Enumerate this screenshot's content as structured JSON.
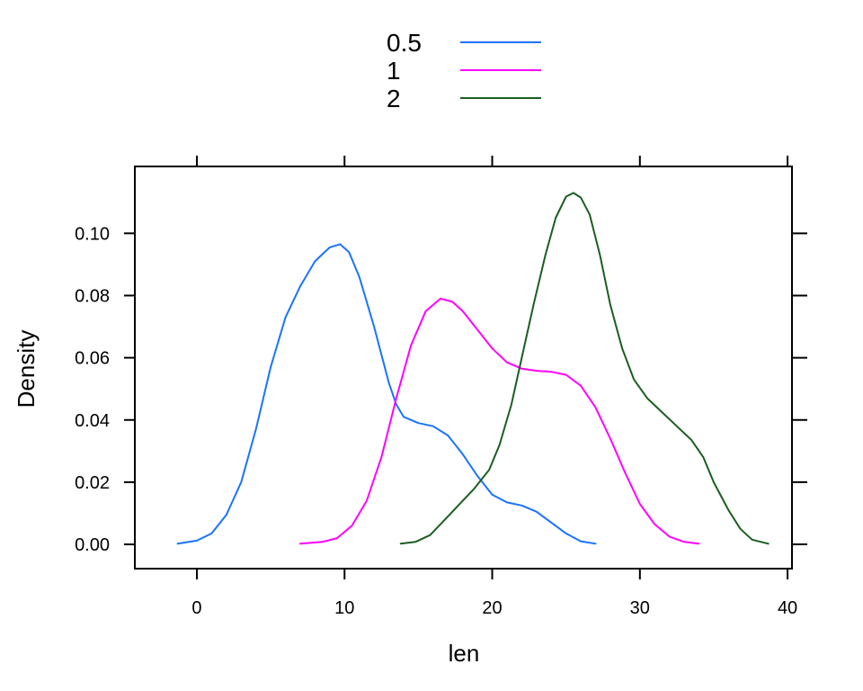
{
  "chart_data": {
    "type": "line",
    "title": "",
    "xlabel": "len",
    "ylabel": "Density",
    "xlim": [
      -4.2,
      40.3
    ],
    "ylim": [
      -0.0078,
      0.1215
    ],
    "xticks": [
      "0",
      "10",
      "20",
      "30",
      "40"
    ],
    "xtick_values": [
      0,
      10,
      20,
      30,
      40
    ],
    "yticks": [
      "0.00",
      "0.02",
      "0.04",
      "0.06",
      "0.08",
      "0.10"
    ],
    "ytick_values": [
      0,
      0.02,
      0.04,
      0.06,
      0.08,
      0.1
    ],
    "grid": false,
    "legend_position": "top-center",
    "series": [
      {
        "name": "0.5",
        "color": "#1a73ff",
        "points": [
          [
            -1.3,
            0.0002
          ],
          [
            0.0,
            0.0012
          ],
          [
            1.0,
            0.0035
          ],
          [
            2.0,
            0.0095
          ],
          [
            3.0,
            0.02
          ],
          [
            4.0,
            0.037
          ],
          [
            5.0,
            0.057
          ],
          [
            6.0,
            0.073
          ],
          [
            7.0,
            0.083
          ],
          [
            8.0,
            0.091
          ],
          [
            9.0,
            0.0955
          ],
          [
            9.7,
            0.0965
          ],
          [
            10.3,
            0.094
          ],
          [
            11.0,
            0.086
          ],
          [
            12.0,
            0.07
          ],
          [
            13.0,
            0.052
          ],
          [
            13.5,
            0.045
          ],
          [
            14.0,
            0.041
          ],
          [
            15.0,
            0.039
          ],
          [
            16.0,
            0.038
          ],
          [
            17.0,
            0.035
          ],
          [
            18.0,
            0.029
          ],
          [
            19.0,
            0.022
          ],
          [
            20.0,
            0.016
          ],
          [
            21.0,
            0.0135
          ],
          [
            22.0,
            0.0125
          ],
          [
            23.0,
            0.0105
          ],
          [
            24.0,
            0.007
          ],
          [
            25.0,
            0.0035
          ],
          [
            26.0,
            0.001
          ],
          [
            27.0,
            0.0002
          ]
        ]
      },
      {
        "name": "1",
        "color": "#ff00ff",
        "points": [
          [
            7.0,
            0.0002
          ],
          [
            8.5,
            0.0008
          ],
          [
            9.5,
            0.002
          ],
          [
            10.5,
            0.006
          ],
          [
            11.5,
            0.014
          ],
          [
            12.5,
            0.028
          ],
          [
            13.5,
            0.047
          ],
          [
            14.5,
            0.064
          ],
          [
            15.5,
            0.075
          ],
          [
            16.5,
            0.079
          ],
          [
            17.3,
            0.078
          ],
          [
            18.0,
            0.075
          ],
          [
            19.0,
            0.069
          ],
          [
            20.0,
            0.063
          ],
          [
            21.0,
            0.0585
          ],
          [
            22.0,
            0.0565
          ],
          [
            23.0,
            0.0558
          ],
          [
            24.0,
            0.0555
          ],
          [
            25.0,
            0.0545
          ],
          [
            26.0,
            0.051
          ],
          [
            27.0,
            0.044
          ],
          [
            28.0,
            0.034
          ],
          [
            29.0,
            0.023
          ],
          [
            30.0,
            0.013
          ],
          [
            31.0,
            0.0065
          ],
          [
            32.0,
            0.0025
          ],
          [
            33.0,
            0.0008
          ],
          [
            34.0,
            0.0002
          ]
        ]
      },
      {
        "name": "2",
        "color": "#1b5e20",
        "points": [
          [
            13.8,
            0.0002
          ],
          [
            14.8,
            0.0008
          ],
          [
            15.8,
            0.003
          ],
          [
            16.8,
            0.008
          ],
          [
            17.8,
            0.013
          ],
          [
            18.8,
            0.018
          ],
          [
            19.8,
            0.024
          ],
          [
            20.5,
            0.032
          ],
          [
            21.3,
            0.045
          ],
          [
            22.0,
            0.06
          ],
          [
            22.8,
            0.077
          ],
          [
            23.6,
            0.093
          ],
          [
            24.3,
            0.105
          ],
          [
            25.0,
            0.1118
          ],
          [
            25.5,
            0.113
          ],
          [
            26.0,
            0.1115
          ],
          [
            26.6,
            0.106
          ],
          [
            27.3,
            0.093
          ],
          [
            28.0,
            0.077
          ],
          [
            28.8,
            0.063
          ],
          [
            29.6,
            0.053
          ],
          [
            30.5,
            0.047
          ],
          [
            31.5,
            0.0425
          ],
          [
            32.5,
            0.038
          ],
          [
            33.5,
            0.0335
          ],
          [
            34.3,
            0.028
          ],
          [
            35.0,
            0.02
          ],
          [
            36.0,
            0.011
          ],
          [
            36.8,
            0.005
          ],
          [
            37.6,
            0.0015
          ],
          [
            38.7,
            0.0002
          ]
        ]
      }
    ]
  }
}
